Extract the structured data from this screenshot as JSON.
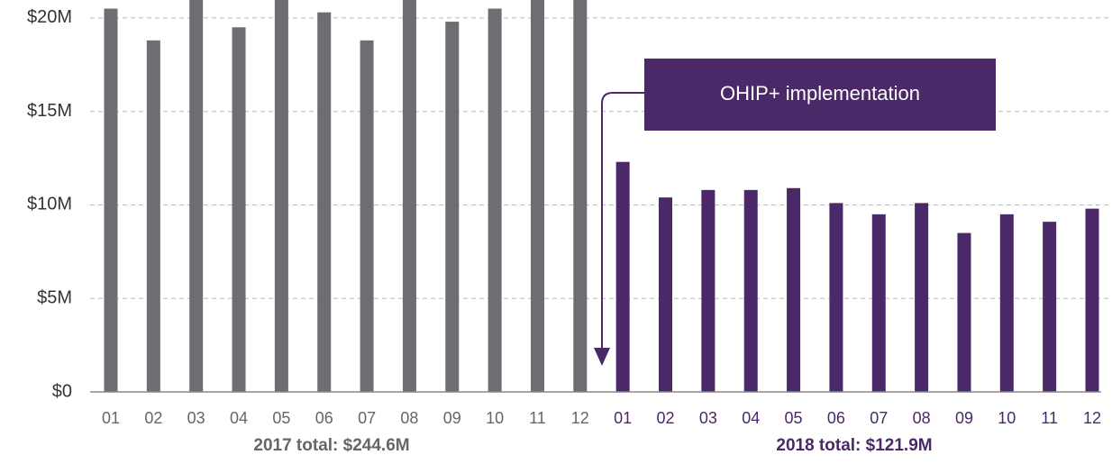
{
  "chart_data": {
    "type": "bar",
    "categories": [
      "01",
      "02",
      "03",
      "04",
      "05",
      "06",
      "07",
      "08",
      "09",
      "10",
      "11",
      "12",
      "01",
      "02",
      "03",
      "04",
      "05",
      "06",
      "07",
      "08",
      "09",
      "10",
      "11",
      "12"
    ],
    "series": [
      {
        "color": "#6d6e71",
        "values": [
          20.5,
          18.8,
          21.3,
          19.5,
          21.2,
          20.3,
          18.8,
          21.3,
          19.8,
          20.5,
          21.3,
          21.3,
          null,
          null,
          null,
          null,
          null,
          null,
          null,
          null,
          null,
          null,
          null,
          null
        ]
      },
      {
        "color": "#4b2868",
        "values": [
          null,
          null,
          null,
          null,
          null,
          null,
          null,
          null,
          null,
          null,
          null,
          null,
          12.3,
          10.4,
          10.8,
          10.8,
          10.9,
          10.1,
          9.5,
          10.1,
          8.5,
          9.5,
          9.1,
          9.8
        ]
      }
    ],
    "ylim": [
      0,
      20.96
    ],
    "yticks": [
      {
        "value": 0,
        "label": "$0"
      },
      {
        "value": 5,
        "label": "$5M"
      },
      {
        "value": 10,
        "label": "$10M"
      },
      {
        "value": 15,
        "label": "$15M"
      },
      {
        "value": 20,
        "label": "$20M"
      }
    ],
    "grid": true,
    "annotations": [
      "2017 total: $244.6M",
      "2018 total: $121.9M",
      "OHIP+ implementation"
    ]
  }
}
